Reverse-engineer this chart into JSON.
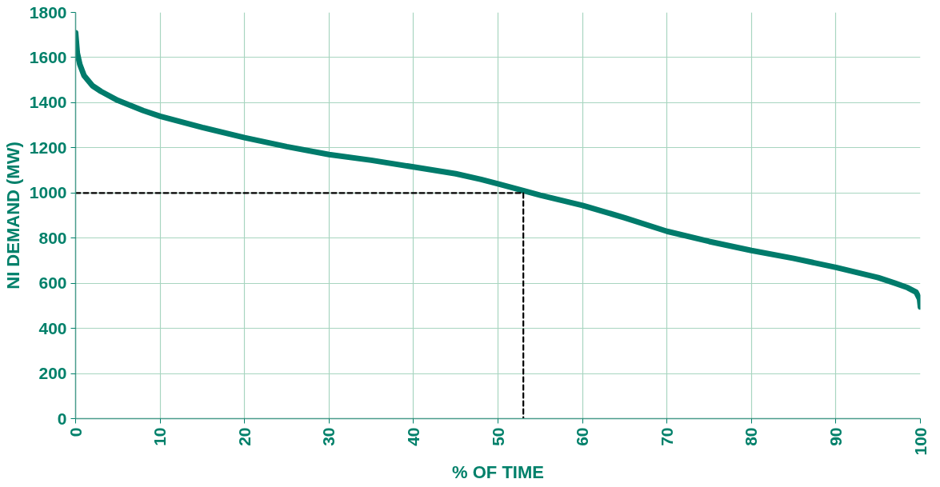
{
  "chart_data": {
    "type": "line",
    "xlabel": "% OF TIME",
    "ylabel": "NI DEMAND (MW)",
    "xlim": [
      0,
      100
    ],
    "xticks": [
      0,
      10,
      20,
      30,
      40,
      50,
      60,
      70,
      80,
      90,
      100
    ],
    "ylim": [
      0,
      1800
    ],
    "yticks": [
      0,
      200,
      400,
      600,
      800,
      1000,
      1200,
      1400,
      1600,
      1800
    ],
    "grid": true,
    "marker": "none",
    "series": [
      {
        "color": "#007b6b",
        "line_style": "solid",
        "x": [
          0,
          0.2,
          0.5,
          1,
          2,
          3,
          5,
          8,
          10,
          15,
          20,
          25,
          30,
          35,
          40,
          45,
          48,
          50,
          53,
          55,
          60,
          65,
          70,
          75,
          80,
          85,
          90,
          95,
          97,
          98.5,
          99.5,
          99.9,
          100
        ],
        "values": [
          1710,
          1620,
          1570,
          1520,
          1475,
          1450,
          1410,
          1365,
          1340,
          1290,
          1245,
          1205,
          1170,
          1145,
          1115,
          1085,
          1060,
          1040,
          1010,
          990,
          945,
          890,
          830,
          785,
          745,
          710,
          670,
          625,
          600,
          580,
          560,
          530,
          495
        ]
      },
      {
        "color": "#000000",
        "line_style": "dashed",
        "x": [
          0,
          53,
          53
        ],
        "values": [
          1000,
          1000,
          0
        ]
      }
    ]
  }
}
